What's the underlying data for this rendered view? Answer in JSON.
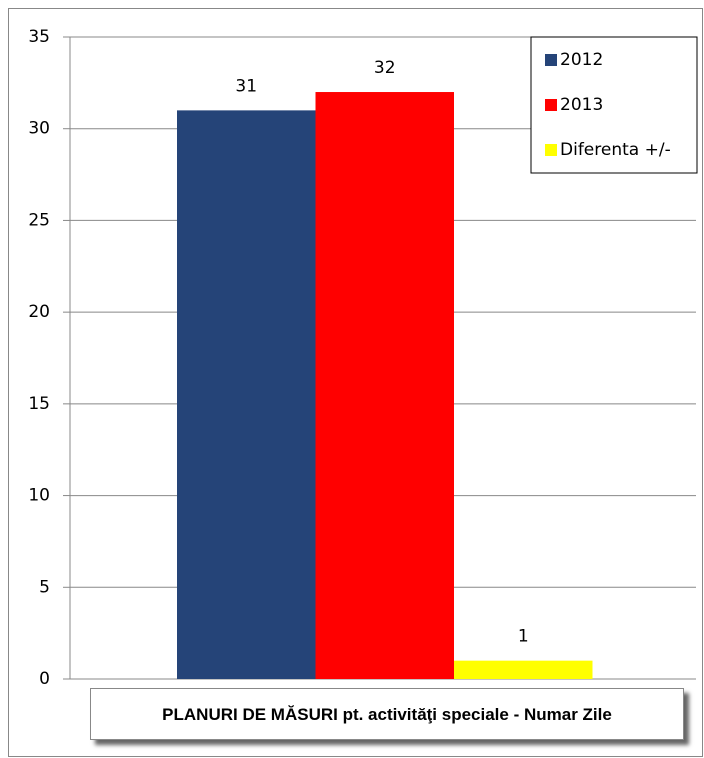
{
  "chart_data": {
    "type": "bar",
    "title": "PLANURI DE MĂSURI pt. activităţi speciale - Numar Zile",
    "series": [
      {
        "name": "2012",
        "color": "#254478",
        "values": [
          31
        ]
      },
      {
        "name": "2013",
        "color": "#ff0000",
        "values": [
          32
        ]
      },
      {
        "name": "Diferenta +/-",
        "color": "#ffff00",
        "values": [
          1
        ]
      }
    ],
    "ylim": [
      0,
      35
    ],
    "yticks": [
      0,
      5,
      10,
      15,
      20,
      25,
      30,
      35
    ],
    "grid": true,
    "legend": "top-right"
  }
}
